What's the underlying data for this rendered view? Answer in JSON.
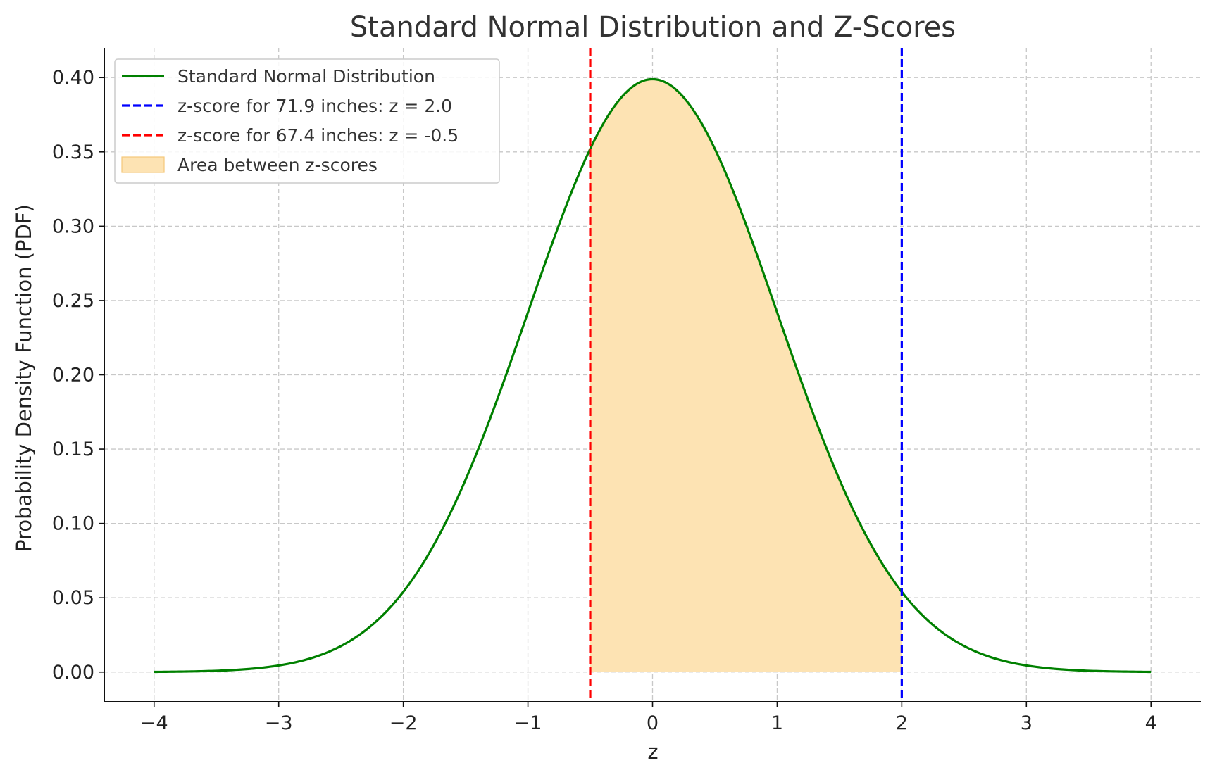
{
  "chart_data": {
    "type": "line",
    "title": "Standard Normal Distribution and Z-Scores",
    "xlabel": "z",
    "ylabel": "Probability Density Function (PDF)",
    "xlim": [
      -4.4,
      4.4
    ],
    "ylim": [
      -0.02,
      0.42
    ],
    "x_ticks": [
      -4,
      -3,
      -2,
      -1,
      0,
      1,
      2,
      3,
      4
    ],
    "x_tick_labels": [
      "−4",
      "−3",
      "−2",
      "−1",
      "0",
      "1",
      "2",
      "3",
      "4"
    ],
    "y_ticks": [
      0.0,
      0.05,
      0.1,
      0.15,
      0.2,
      0.25,
      0.3,
      0.35,
      0.4
    ],
    "y_tick_labels": [
      "0.00",
      "0.05",
      "0.10",
      "0.15",
      "0.20",
      "0.25",
      "0.30",
      "0.35",
      "0.40"
    ],
    "grid": true,
    "legend_position": "top-left",
    "series": [
      {
        "name": "Standard Normal Distribution",
        "kind": "line",
        "color": "#008000",
        "x": [
          -4.0,
          -3.5,
          -3.0,
          -2.5,
          -2.0,
          -1.5,
          -1.0,
          -0.5,
          0.0,
          0.5,
          1.0,
          1.5,
          2.0,
          2.5,
          3.0,
          3.5,
          4.0
        ],
        "y": [
          0.0001,
          0.0009,
          0.0044,
          0.0175,
          0.054,
          0.1295,
          0.242,
          0.3521,
          0.3989,
          0.3521,
          0.242,
          0.1295,
          0.054,
          0.0175,
          0.0044,
          0.0009,
          0.0001
        ]
      },
      {
        "name": "z-score for 71.9 inches: z = 2.0",
        "kind": "vline",
        "color": "#0000ff",
        "x": 2.0
      },
      {
        "name": "z-score for 67.4 inches: z = -0.5",
        "kind": "vline",
        "color": "#ff0000",
        "x": -0.5
      },
      {
        "name": "Area between z-scores",
        "kind": "fill",
        "color": "#fde3b3",
        "x_range": [
          -0.5,
          2.0
        ]
      }
    ]
  }
}
